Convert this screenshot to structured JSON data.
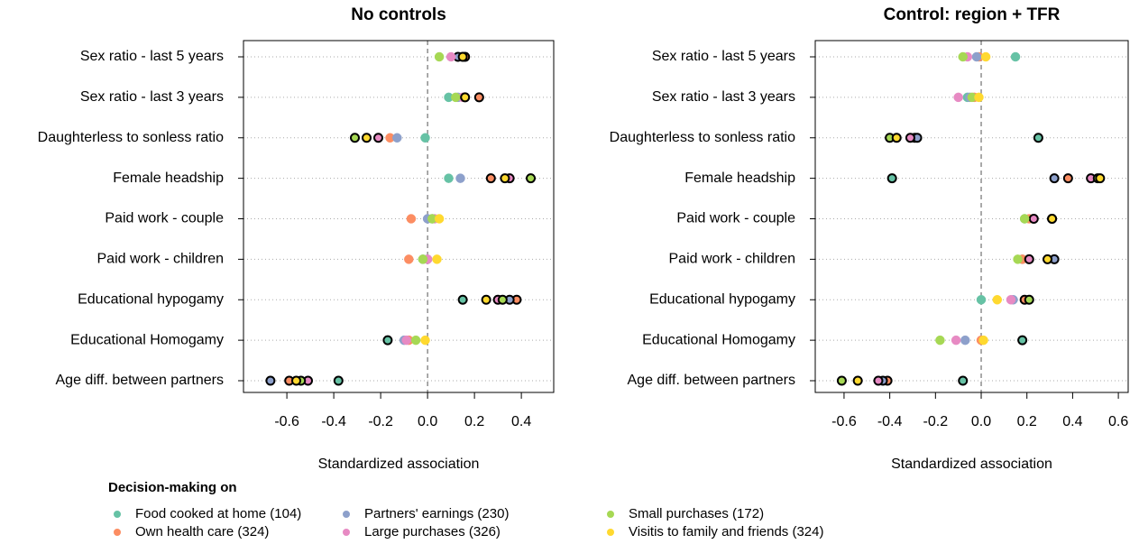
{
  "legend_title": "Decision-making on",
  "chart_data": [
    {
      "type": "dot",
      "title": "No controls",
      "x_label": "Standardized association",
      "categories": [
        "Sex ratio - last 5 years",
        "Sex ratio - last 3 years",
        "Daughterless to sonless ratio",
        "Female headship",
        "Paid work - couple",
        "Paid work - children",
        "Educational hypogamy",
        "Educational Homogamy",
        "Age diff. between partners"
      ],
      "xlim": [
        -0.785,
        0.538
      ],
      "xticks": [
        -0.6,
        -0.4,
        -0.2,
        {
          "value": 0,
          "label": "0.0"
        },
        0.2,
        0.4
      ],
      "grid": true,
      "series": [
        {
          "name": "Food cooked at home (104)",
          "color": "#66c2a5",
          "values": [
            0.13,
            0.09,
            -0.01,
            0.09,
            0.02,
            -0.02,
            0.15,
            -0.17,
            -0.38
          ],
          "outlined": [
            false,
            false,
            false,
            false,
            false,
            false,
            true,
            true,
            true
          ]
        },
        {
          "name": "Own health care (324)",
          "color": "#fc8d62",
          "values": [
            0.16,
            0.22,
            -0.16,
            0.27,
            -0.07,
            -0.08,
            0.38,
            -0.08,
            -0.59
          ],
          "outlined": [
            true,
            true,
            false,
            true,
            false,
            false,
            true,
            false,
            true
          ]
        },
        {
          "name": "Partners' earnings (230)",
          "color": "#8da0cb",
          "values": [
            0.13,
            0.13,
            -0.13,
            0.14,
            0.0,
            0.0,
            0.35,
            -0.1,
            -0.67
          ],
          "outlined": [
            true,
            false,
            false,
            false,
            false,
            false,
            true,
            false,
            true
          ]
        },
        {
          "name": "Large purchases (326)",
          "color": "#e78ac3",
          "values": [
            0.1,
            0.15,
            -0.21,
            0.35,
            0.03,
            0.0,
            0.3,
            -0.09,
            -0.51
          ],
          "outlined": [
            false,
            false,
            true,
            true,
            false,
            false,
            true,
            false,
            true
          ]
        },
        {
          "name": "Small purchases (172)",
          "color": "#a6d854",
          "values": [
            0.05,
            0.12,
            -0.31,
            0.44,
            0.02,
            -0.02,
            0.32,
            -0.05,
            -0.54
          ],
          "outlined": [
            false,
            false,
            true,
            true,
            false,
            false,
            true,
            false,
            true
          ]
        },
        {
          "name": "Visitis to family and friends (324)",
          "color": "#ffd92f",
          "values": [
            0.15,
            0.16,
            -0.26,
            0.33,
            0.05,
            0.04,
            0.25,
            -0.01,
            -0.56
          ],
          "outlined": [
            true,
            true,
            true,
            true,
            false,
            false,
            true,
            false,
            true
          ]
        }
      ]
    },
    {
      "type": "dot",
      "title": "Control: region + TFR",
      "x_label": "Standardized association",
      "categories": [
        "Sex ratio - last 5 years",
        "Sex ratio - last 3 years",
        "Daughterless to sonless ratio",
        "Female headship",
        "Paid work - couple",
        "Paid work - children",
        "Educational hypogamy",
        "Educational Homogamy",
        "Age diff. between partners"
      ],
      "xlim": [
        -0.726,
        0.643
      ],
      "xticks": [
        -0.6,
        -0.4,
        -0.2,
        {
          "value": 0,
          "label": "0.0"
        },
        0.2,
        0.4,
        0.6
      ],
      "grid": true,
      "series": [
        {
          "name": "Food cooked at home (104)",
          "color": "#66c2a5",
          "values": [
            0.15,
            -0.06,
            0.25,
            -0.39,
            0.19,
            0.18,
            0.0,
            0.18,
            -0.08
          ],
          "outlined": [
            false,
            false,
            true,
            true,
            false,
            false,
            false,
            true,
            true
          ]
        },
        {
          "name": "Own health care (324)",
          "color": "#fc8d62",
          "values": [
            -0.01,
            -0.03,
            -0.29,
            0.38,
            0.21,
            0.18,
            0.19,
            0.0,
            -0.41
          ],
          "outlined": [
            false,
            false,
            true,
            true,
            false,
            false,
            true,
            false,
            true
          ]
        },
        {
          "name": "Partners' earnings (230)",
          "color": "#8da0cb",
          "values": [
            -0.02,
            -0.05,
            -0.28,
            0.32,
            0.31,
            0.32,
            0.14,
            -0.07,
            -0.43
          ],
          "outlined": [
            false,
            false,
            true,
            true,
            true,
            true,
            false,
            false,
            true
          ]
        },
        {
          "name": "Large purchases (326)",
          "color": "#e78ac3",
          "values": [
            -0.06,
            -0.1,
            -0.31,
            0.48,
            0.23,
            0.21,
            0.13,
            -0.11,
            -0.45
          ],
          "outlined": [
            false,
            false,
            true,
            true,
            true,
            true,
            false,
            false,
            true
          ]
        },
        {
          "name": "Small purchases (172)",
          "color": "#a6d854",
          "values": [
            -0.08,
            -0.04,
            -0.4,
            0.51,
            0.19,
            0.16,
            0.21,
            -0.18,
            -0.61
          ],
          "outlined": [
            false,
            false,
            true,
            true,
            false,
            false,
            true,
            false,
            true
          ]
        },
        {
          "name": "Visitis to family and friends (324)",
          "color": "#ffd92f",
          "values": [
            0.02,
            -0.01,
            -0.37,
            0.52,
            0.31,
            0.29,
            0.07,
            0.01,
            -0.54
          ],
          "outlined": [
            false,
            false,
            true,
            true,
            true,
            true,
            false,
            false,
            true
          ]
        }
      ]
    }
  ]
}
